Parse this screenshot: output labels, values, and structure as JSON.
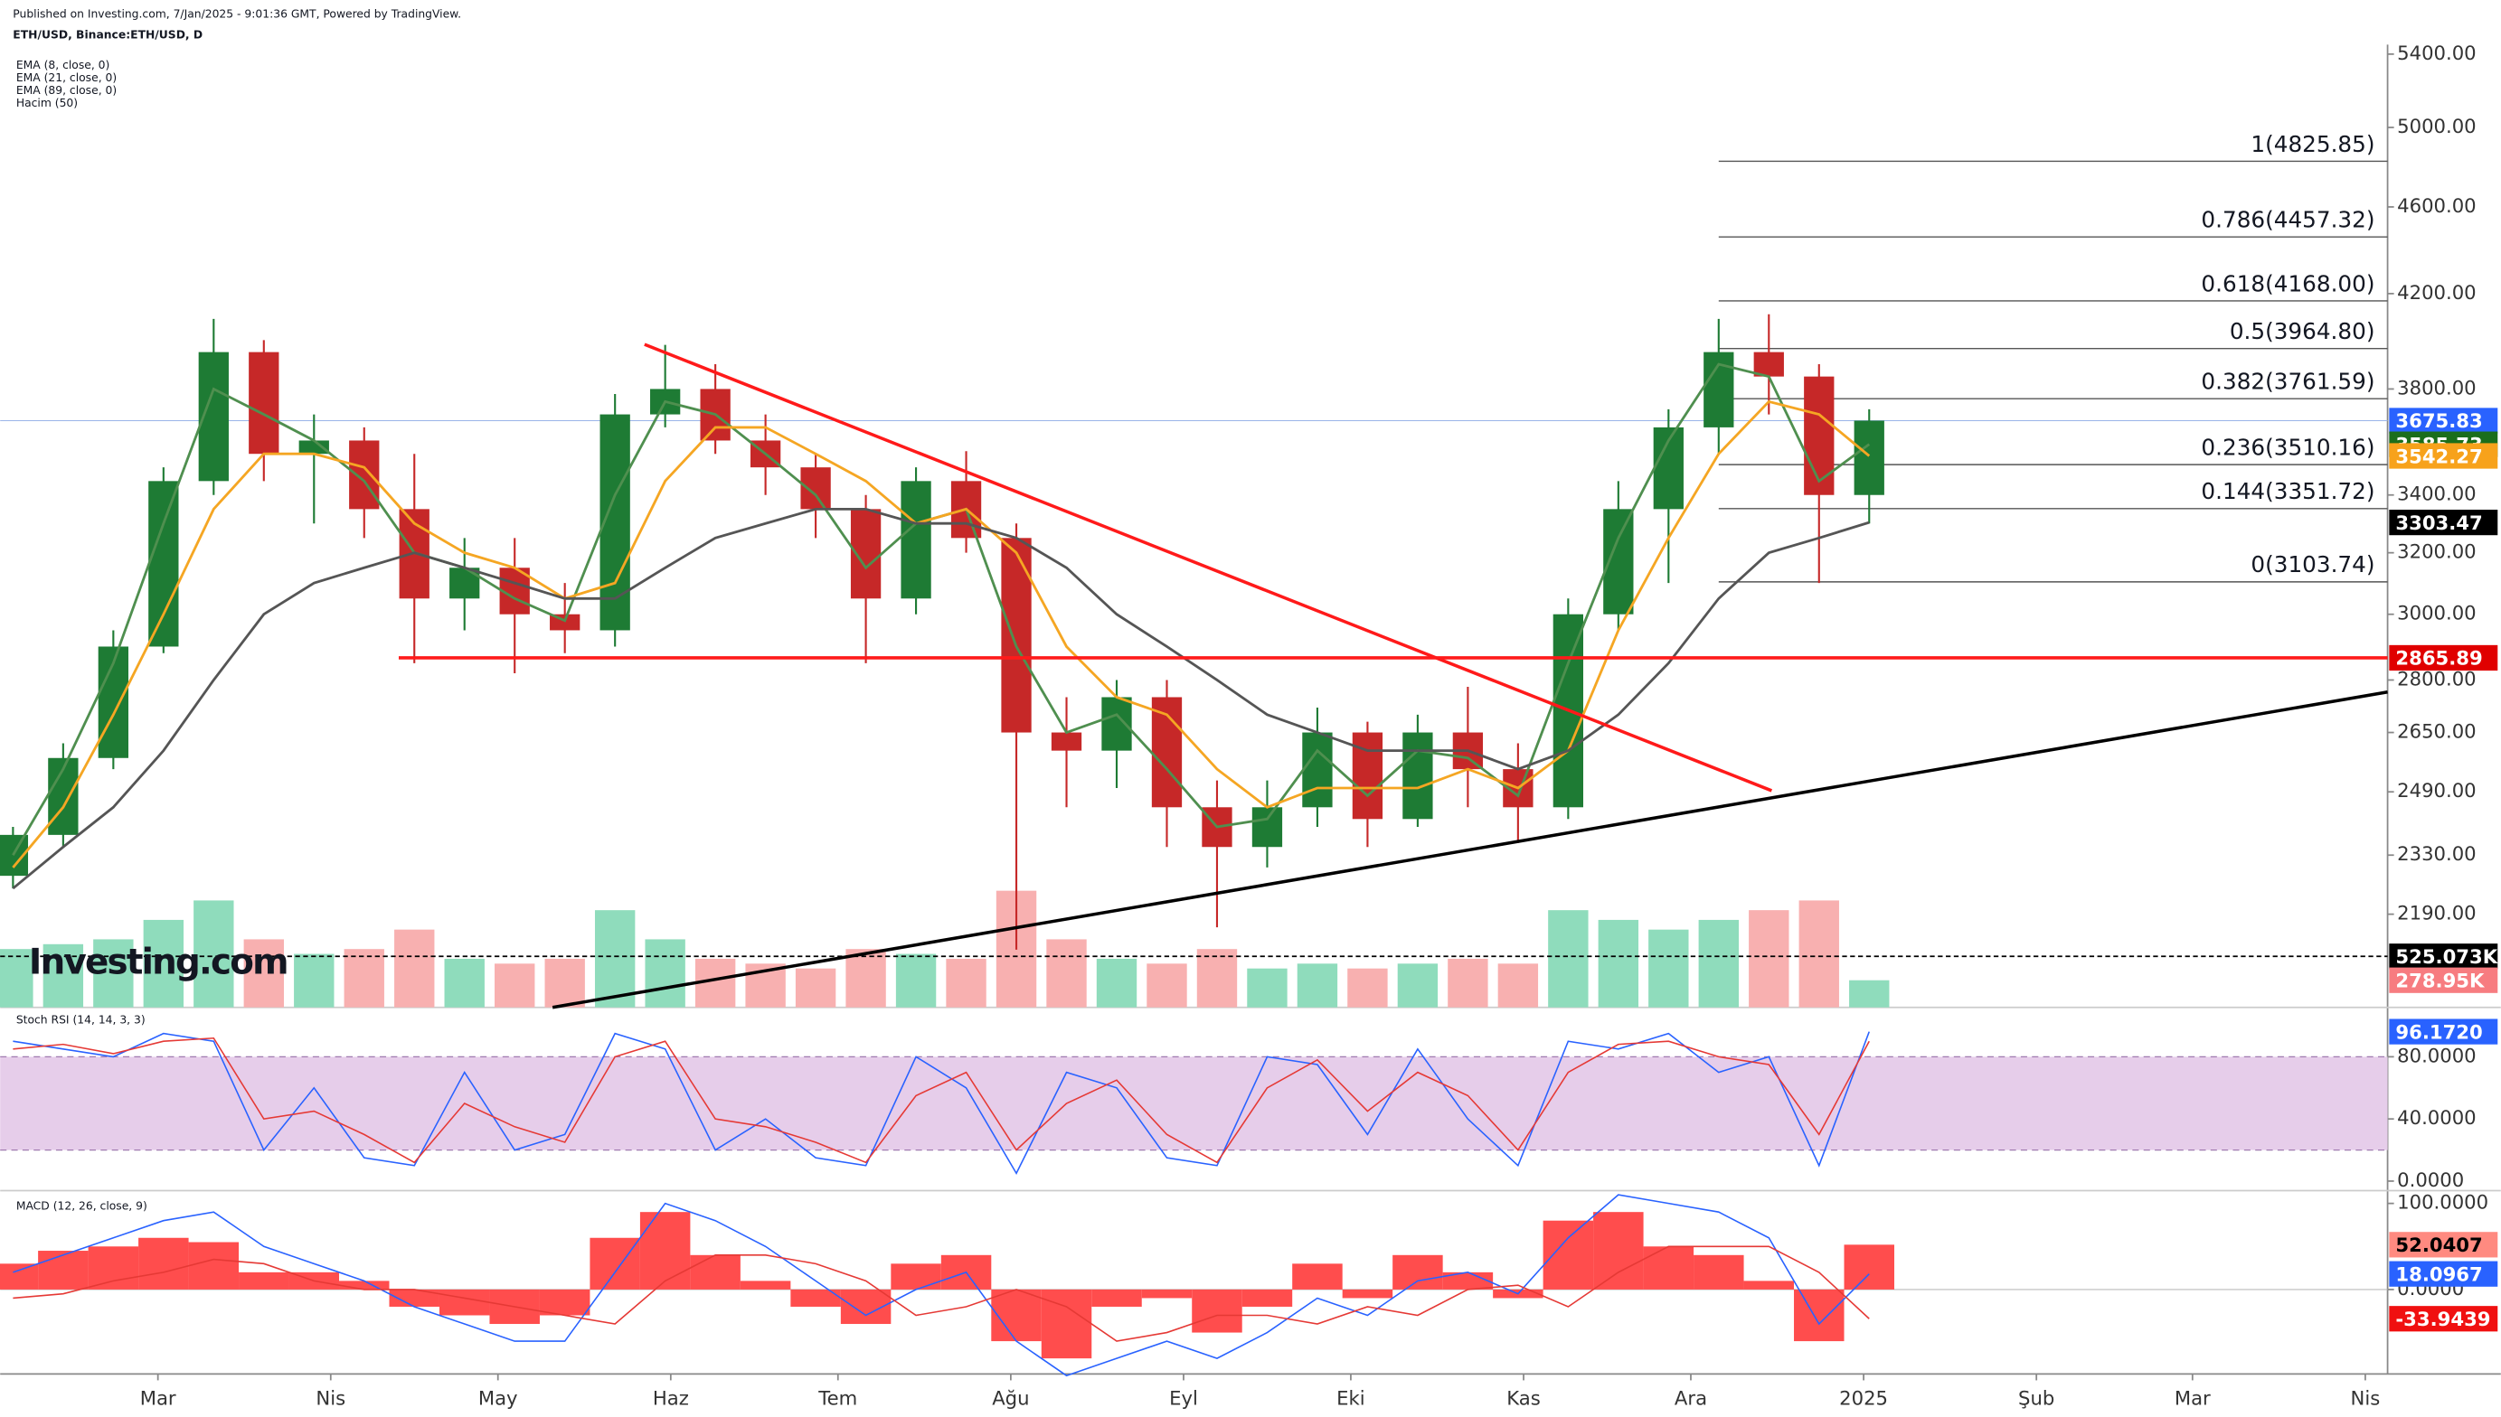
{
  "header": {
    "published": "Published on Investing.com, 7/Jan/2025 - 9:01:36 GMT, Powered by TradingView.",
    "symbol": "ETH/USD, Binance:ETH/USD, D",
    "indicators": [
      "EMA (8, close, 0)",
      "EMA (21, close, 0)",
      "EMA (89, close, 0)",
      "Hacim (50)"
    ],
    "logo": "Investing.com"
  },
  "chart_data": [
    {
      "type": "candlestick",
      "log_scale": true,
      "up_color": "#1e7b34",
      "down_color": "#c62828",
      "xlim": [
        31.7,
        460
      ],
      "ylim": [
        1986,
        5454
      ],
      "xticks": [
        {
          "value": 60,
          "label": "Mar"
        },
        {
          "value": 91,
          "label": "Nis"
        },
        {
          "value": 121,
          "label": "May"
        },
        {
          "value": 152,
          "label": "Haz"
        },
        {
          "value": 182,
          "label": "Tem"
        },
        {
          "value": 213,
          "label": "Ağu"
        },
        {
          "value": 244,
          "label": "Eyl"
        },
        {
          "value": 274,
          "label": "Eki"
        },
        {
          "value": 305,
          "label": "Kas"
        },
        {
          "value": 335,
          "label": "Ara"
        },
        {
          "value": 366,
          "label": "2025"
        },
        {
          "value": 397,
          "label": "Şub"
        },
        {
          "value": 425,
          "label": "Mar"
        },
        {
          "value": 456,
          "label": "Nis"
        }
      ],
      "yticks": [
        {
          "value": 5400,
          "label": "5400.00"
        },
        {
          "value": 5000,
          "label": "5000.00"
        },
        {
          "value": 4600,
          "label": "4600.00"
        },
        {
          "value": 4200,
          "label": "4200.00"
        },
        {
          "value": 3800,
          "label": "3800.00"
        },
        {
          "value": 3400,
          "label": "3400.00"
        },
        {
          "value": 3200,
          "label": "3200.00"
        },
        {
          "value": 3000,
          "label": "3000.00"
        },
        {
          "value": 2800,
          "label": "2800.00"
        },
        {
          "value": 2650,
          "label": "2650.00"
        },
        {
          "value": 2490,
          "label": "2490.00"
        },
        {
          "value": 2330,
          "label": "2330.00"
        },
        {
          "value": 2190,
          "label": "2190.00"
        }
      ],
      "x": [
        34,
        43,
        52,
        61,
        70,
        79,
        88,
        97,
        106,
        115,
        124,
        133,
        142,
        151,
        160,
        169,
        178,
        187,
        196,
        205,
        214,
        223,
        232,
        241,
        250,
        259,
        268,
        277,
        286,
        295,
        304,
        313,
        322,
        331,
        340,
        349,
        358,
        367
      ],
      "open": [
        2280,
        2380,
        2580,
        2900,
        3450,
        3950,
        3550,
        3600,
        3350,
        3050,
        3150,
        3000,
        2950,
        3700,
        3800,
        3600,
        3500,
        3350,
        3050,
        3450,
        3250,
        2650,
        2600,
        2750,
        2450,
        2350,
        2450,
        2650,
        2420,
        2650,
        2550,
        2450,
        3000,
        3350,
        3650,
        3950,
        3850,
        3400
      ],
      "high": [
        2400,
        2620,
        2950,
        3500,
        4090,
        4000,
        3700,
        3650,
        3550,
        3250,
        3250,
        3100,
        3780,
        3980,
        3900,
        3700,
        3550,
        3400,
        3500,
        3560,
        3300,
        2750,
        2800,
        2800,
        2520,
        2520,
        2720,
        2680,
        2700,
        2780,
        2620,
        3050,
        3450,
        3720,
        4090,
        4110,
        3900,
        3720
      ],
      "low": [
        2250,
        2350,
        2550,
        2880,
        3400,
        3450,
        3300,
        3250,
        2850,
        2950,
        2820,
        2880,
        2900,
        3650,
        3550,
        3400,
        3250,
        2850,
        3000,
        3200,
        2110,
        2450,
        2500,
        2350,
        2160,
        2300,
        2400,
        2350,
        2400,
        2450,
        2360,
        2420,
        2950,
        3100,
        3550,
        3700,
        3100,
        3300
      ],
      "close": [
        2380,
        2580,
        2900,
        3450,
        3950,
        3550,
        3600,
        3350,
        3050,
        3150,
        3000,
        2950,
        3700,
        3800,
        3600,
        3500,
        3350,
        3050,
        3450,
        3250,
        2650,
        2600,
        2750,
        2450,
        2350,
        2450,
        2650,
        2420,
        2650,
        2550,
        2450,
        3000,
        3350,
        3650,
        3950,
        3850,
        3400,
        3675.83
      ],
      "series": [
        {
          "name": "EMA (8, close, 0)",
          "color": "#4f8f4f",
          "values": [
            2330,
            2550,
            2850,
            3300,
            3800,
            3700,
            3600,
            3450,
            3200,
            3150,
            3050,
            2980,
            3400,
            3750,
            3700,
            3550,
            3400,
            3150,
            3300,
            3350,
            2900,
            2650,
            2700,
            2550,
            2400,
            2420,
            2600,
            2480,
            2600,
            2580,
            2480,
            2850,
            3250,
            3600,
            3900,
            3850,
            3450,
            3585.73
          ]
        },
        {
          "name": "EMA (21, close, 0)",
          "color": "#f5a623",
          "values": [
            2300,
            2450,
            2700,
            3000,
            3350,
            3550,
            3550,
            3500,
            3300,
            3200,
            3150,
            3050,
            3100,
            3450,
            3650,
            3650,
            3550,
            3450,
            3300,
            3350,
            3200,
            2900,
            2750,
            2700,
            2550,
            2450,
            2500,
            2500,
            2500,
            2550,
            2500,
            2600,
            2950,
            3250,
            3550,
            3750,
            3700,
            3542.27
          ]
        },
        {
          "name": "EMA (89, close, 0)",
          "color": "#555555",
          "values": [
            2250,
            2350,
            2450,
            2600,
            2800,
            3000,
            3100,
            3150,
            3200,
            3150,
            3100,
            3050,
            3050,
            3150,
            3250,
            3300,
            3350,
            3350,
            3300,
            3300,
            3250,
            3150,
            3000,
            2900,
            2800,
            2700,
            2650,
            2600,
            2600,
            2600,
            2550,
            2600,
            2700,
            2850,
            3050,
            3200,
            3250,
            3303.47
          ]
        }
      ],
      "fib_from": 340,
      "fib_levels": [
        {
          "value": 4825.85,
          "label": "1(4825.85)"
        },
        {
          "value": 4457.32,
          "label": "0.786(4457.32)"
        },
        {
          "value": 4168.0,
          "label": "0.618(4168.00)"
        },
        {
          "value": 3964.8,
          "label": "0.5(3964.80)"
        },
        {
          "value": 3761.59,
          "label": "0.382(3761.59)"
        },
        {
          "value": 3510.16,
          "label": "0.236(3510.16)"
        },
        {
          "value": 3351.72,
          "label": "0.144(3351.72)"
        },
        {
          "value": 3103.74,
          "label": "0(3103.74)"
        }
      ],
      "lines": [
        {
          "color": "#ff1a1a",
          "x": [
            147.3,
            349.5
          ],
          "y": [
            3982,
            2493
          ]
        },
        {
          "color": "#000000",
          "x": [
            130.8,
            460
          ],
          "y": [
            1986,
            2765
          ]
        },
        {
          "color": "#ff1a1a",
          "x": [
            103.2,
            460
          ],
          "y": [
            2865.89,
            2865.89
          ]
        }
      ],
      "tags": [
        {
          "value": 3675.83,
          "label": "3675.83",
          "color": "#2962ff"
        },
        {
          "value": 3585.73,
          "label": "3585.73",
          "color": "#1b6e1b"
        },
        {
          "value": 3542.27,
          "label": "3542.27",
          "color": "#f7a21b"
        },
        {
          "value": 3303.47,
          "label": "3303.47",
          "color": "#000000"
        },
        {
          "value": 2865.89,
          "label": "2865.89",
          "color": "#e00000"
        }
      ]
    },
    {
      "type": "bar",
      "title": "Hacim (50)",
      "ylim": [
        0,
        1312
      ],
      "up_color": "#8fdcbc",
      "down_color": "#f8b0b0",
      "values": [
        600,
        650,
        700,
        900,
        1100,
        700,
        550,
        600,
        800,
        500,
        450,
        500,
        1000,
        700,
        500,
        450,
        400,
        600,
        550,
        500,
        1200,
        700,
        500,
        450,
        600,
        400,
        450,
        400,
        450,
        500,
        450,
        1000,
        900,
        800,
        900,
        1000,
        1100,
        278.95
      ],
      "ma_level": {
        "value": 525.073,
        "label": "525.073K",
        "color": "#000000"
      },
      "tags": [
        {
          "value": 278.95,
          "label": "278.95K",
          "color": "#f77c80"
        }
      ]
    },
    {
      "type": "line",
      "title": "Stoch RSI (14, 14, 3, 3)",
      "ylim": [
        -6.15,
        103.6
      ],
      "band": [
        20,
        80
      ],
      "band_color": "#e6cdea",
      "yticks": [
        {
          "value": 80,
          "label": "80.0000"
        },
        {
          "value": 40,
          "label": "40.0000"
        },
        {
          "value": 0,
          "label": "0.0000"
        }
      ],
      "series": [
        {
          "name": "K",
          "color": "#2962ff",
          "values": [
            90,
            85,
            80,
            95,
            90,
            20,
            60,
            15,
            10,
            70,
            20,
            30,
            95,
            85,
            20,
            40,
            15,
            10,
            80,
            60,
            5,
            70,
            60,
            15,
            10,
            80,
            75,
            30,
            85,
            40,
            10,
            90,
            85,
            95,
            70,
            80,
            10,
            96.172
          ]
        },
        {
          "name": "D",
          "color": "#e53935",
          "values": [
            85,
            88,
            82,
            90,
            92,
            40,
            45,
            30,
            12,
            50,
            35,
            25,
            80,
            90,
            40,
            35,
            25,
            12,
            55,
            70,
            20,
            50,
            65,
            30,
            12,
            60,
            78,
            45,
            70,
            55,
            20,
            70,
            88,
            90,
            80,
            75,
            30,
            90
          ]
        }
      ],
      "tags": [
        {
          "value": 96.172,
          "label": "96.1720",
          "color": "#2962ff"
        }
      ]
    },
    {
      "type": "macd",
      "title": "MACD (12, 26, close, 9)",
      "ylim": [
        -98.1,
        114.8
      ],
      "hist_color": "#ff4d4d",
      "yticks": [
        {
          "value": 100,
          "label": "100.0000"
        },
        {
          "value": 0,
          "label": "0.0000"
        }
      ],
      "histogram": [
        30,
        45,
        50,
        60,
        55,
        20,
        20,
        10,
        -20,
        -30,
        -40,
        -30,
        60,
        90,
        40,
        10,
        -20,
        -40,
        30,
        40,
        -60,
        -80,
        -20,
        -10,
        -50,
        -20,
        30,
        -10,
        40,
        20,
        -10,
        80,
        90,
        50,
        40,
        10,
        -60,
        52.0407
      ],
      "series": [
        {
          "name": "MACD",
          "color": "#2962ff",
          "values": [
            20,
            40,
            60,
            80,
            90,
            50,
            30,
            10,
            -20,
            -40,
            -60,
            -60,
            20,
            100,
            80,
            50,
            10,
            -30,
            0,
            20,
            -60,
            -100,
            -80,
            -60,
            -80,
            -50,
            -10,
            -30,
            10,
            20,
            -5,
            60,
            110,
            100,
            90,
            60,
            -40,
            18.0967
          ]
        },
        {
          "name": "Signal",
          "color": "#e53935",
          "values": [
            -10,
            -5,
            10,
            20,
            35,
            30,
            10,
            0,
            0,
            -10,
            -20,
            -30,
            -40,
            10,
            40,
            40,
            30,
            10,
            -30,
            -20,
            0,
            -20,
            -60,
            -50,
            -30,
            -30,
            -40,
            -20,
            -30,
            0,
            5,
            -20,
            20,
            50,
            50,
            50,
            20,
            -33.9439
          ]
        }
      ],
      "tags": [
        {
          "value": 52.0407,
          "label": "52.0407",
          "color": "#ff8a80"
        },
        {
          "value": 18.0967,
          "label": "18.0967",
          "color": "#2962ff"
        },
        {
          "value": -33.9439,
          "label": "-33.9439",
          "color": "#f01010"
        }
      ]
    }
  ]
}
